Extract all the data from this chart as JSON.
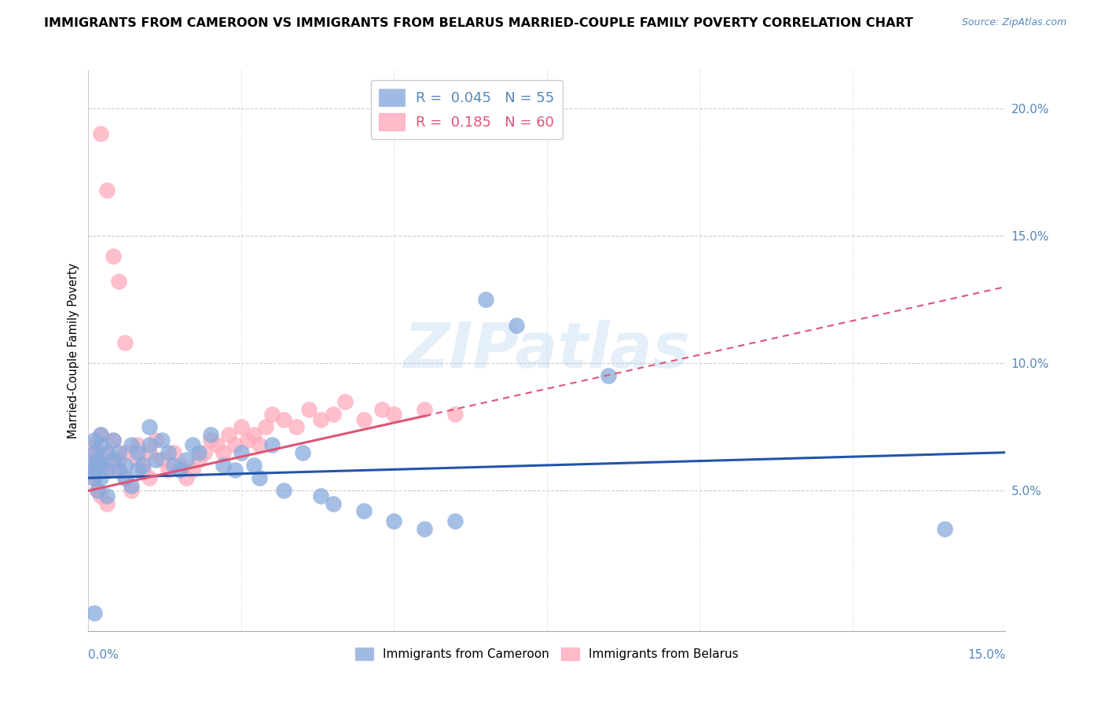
{
  "title": "IMMIGRANTS FROM CAMEROON VS IMMIGRANTS FROM BELARUS MARRIED-COUPLE FAMILY POVERTY CORRELATION CHART",
  "source": "Source: ZipAtlas.com",
  "ylabel": "Married-Couple Family Poverty",
  "ylabel_right_vals": [
    0.2,
    0.15,
    0.1,
    0.05
  ],
  "xlim": [
    0.0,
    0.15
  ],
  "ylim": [
    -0.005,
    0.215
  ],
  "color_cameroon": "#88AADD",
  "color_belarus": "#FFAABB",
  "color_line_cameroon": "#2255AA",
  "color_line_belarus": "#DD5577",
  "watermark": "ZIPatlas",
  "cam_r": 0.045,
  "cam_n": 55,
  "bel_r": 0.185,
  "bel_n": 60,
  "cameroon_x": [
    0.0005,
    0.0008,
    0.001,
    0.001,
    0.001,
    0.0015,
    0.0015,
    0.002,
    0.002,
    0.002,
    0.002,
    0.003,
    0.003,
    0.003,
    0.004,
    0.004,
    0.005,
    0.005,
    0.006,
    0.006,
    0.007,
    0.007,
    0.008,
    0.008,
    0.009,
    0.01,
    0.01,
    0.011,
    0.012,
    0.013,
    0.014,
    0.015,
    0.016,
    0.017,
    0.018,
    0.02,
    0.022,
    0.024,
    0.025,
    0.027,
    0.028,
    0.03,
    0.032,
    0.035,
    0.038,
    0.04,
    0.045,
    0.05,
    0.055,
    0.06,
    0.065,
    0.07,
    0.085,
    0.14,
    0.001
  ],
  "cameroon_y": [
    0.06,
    0.055,
    0.065,
    0.058,
    0.07,
    0.062,
    0.05,
    0.06,
    0.068,
    0.055,
    0.072,
    0.058,
    0.065,
    0.048,
    0.062,
    0.07,
    0.058,
    0.065,
    0.055,
    0.06,
    0.068,
    0.052,
    0.065,
    0.058,
    0.06,
    0.075,
    0.068,
    0.062,
    0.07,
    0.065,
    0.06,
    0.058,
    0.062,
    0.068,
    0.065,
    0.072,
    0.06,
    0.058,
    0.065,
    0.06,
    0.055,
    0.068,
    0.05,
    0.065,
    0.048,
    0.045,
    0.042,
    0.038,
    0.035,
    0.038,
    0.125,
    0.115,
    0.095,
    0.035,
    0.002
  ],
  "belarus_x": [
    0.0005,
    0.0008,
    0.001,
    0.001,
    0.001,
    0.0015,
    0.002,
    0.002,
    0.002,
    0.003,
    0.003,
    0.003,
    0.004,
    0.004,
    0.005,
    0.005,
    0.006,
    0.006,
    0.007,
    0.008,
    0.008,
    0.009,
    0.01,
    0.01,
    0.011,
    0.012,
    0.013,
    0.014,
    0.015,
    0.016,
    0.017,
    0.018,
    0.019,
    0.02,
    0.021,
    0.022,
    0.023,
    0.024,
    0.025,
    0.026,
    0.027,
    0.028,
    0.029,
    0.03,
    0.032,
    0.034,
    0.036,
    0.038,
    0.04,
    0.042,
    0.045,
    0.048,
    0.05,
    0.055,
    0.06,
    0.002,
    0.003,
    0.004,
    0.005,
    0.006
  ],
  "belarus_y": [
    0.06,
    0.055,
    0.065,
    0.058,
    0.068,
    0.05,
    0.062,
    0.048,
    0.072,
    0.058,
    0.065,
    0.045,
    0.06,
    0.07,
    0.058,
    0.062,
    0.055,
    0.065,
    0.05,
    0.062,
    0.068,
    0.058,
    0.065,
    0.055,
    0.07,
    0.062,
    0.058,
    0.065,
    0.06,
    0.055,
    0.058,
    0.062,
    0.065,
    0.07,
    0.068,
    0.065,
    0.072,
    0.068,
    0.075,
    0.07,
    0.072,
    0.068,
    0.075,
    0.08,
    0.078,
    0.075,
    0.082,
    0.078,
    0.08,
    0.085,
    0.078,
    0.082,
    0.08,
    0.082,
    0.08,
    0.19,
    0.168,
    0.142,
    0.132,
    0.108
  ]
}
